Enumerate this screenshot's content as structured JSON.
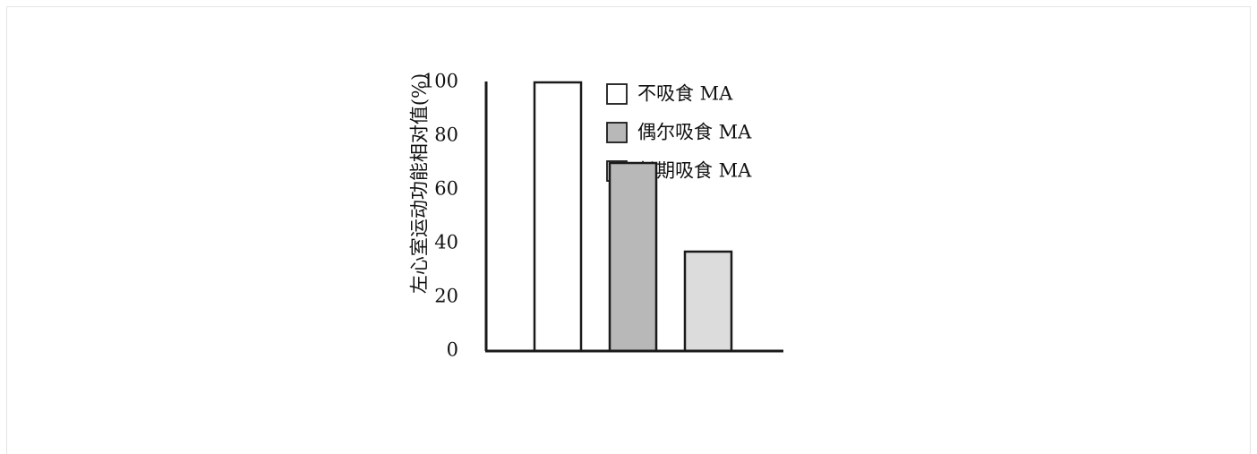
{
  "chart_data": {
    "type": "bar",
    "title": "",
    "xlabel": "",
    "ylabel": "左心室运动功能相对值(%)",
    "ylim": [
      0,
      100
    ],
    "yticks": [
      0,
      20,
      40,
      60,
      80,
      100
    ],
    "grid": false,
    "legend_position": "top-right",
    "categories": [
      "不吸食 MA",
      "偶尔吸食 MA",
      "长期吸食 MA"
    ],
    "values": [
      100,
      70,
      37
    ],
    "series": [
      {
        "name": "不吸食 MA",
        "value": 100,
        "color": "#ffffff"
      },
      {
        "name": "偶尔吸食 MA",
        "value": 70,
        "color": "#b8b8b8"
      },
      {
        "name": "长期吸食 MA",
        "value": 37,
        "color": "#dcdcdc"
      }
    ],
    "stroke_color": "#1a1a1a"
  }
}
